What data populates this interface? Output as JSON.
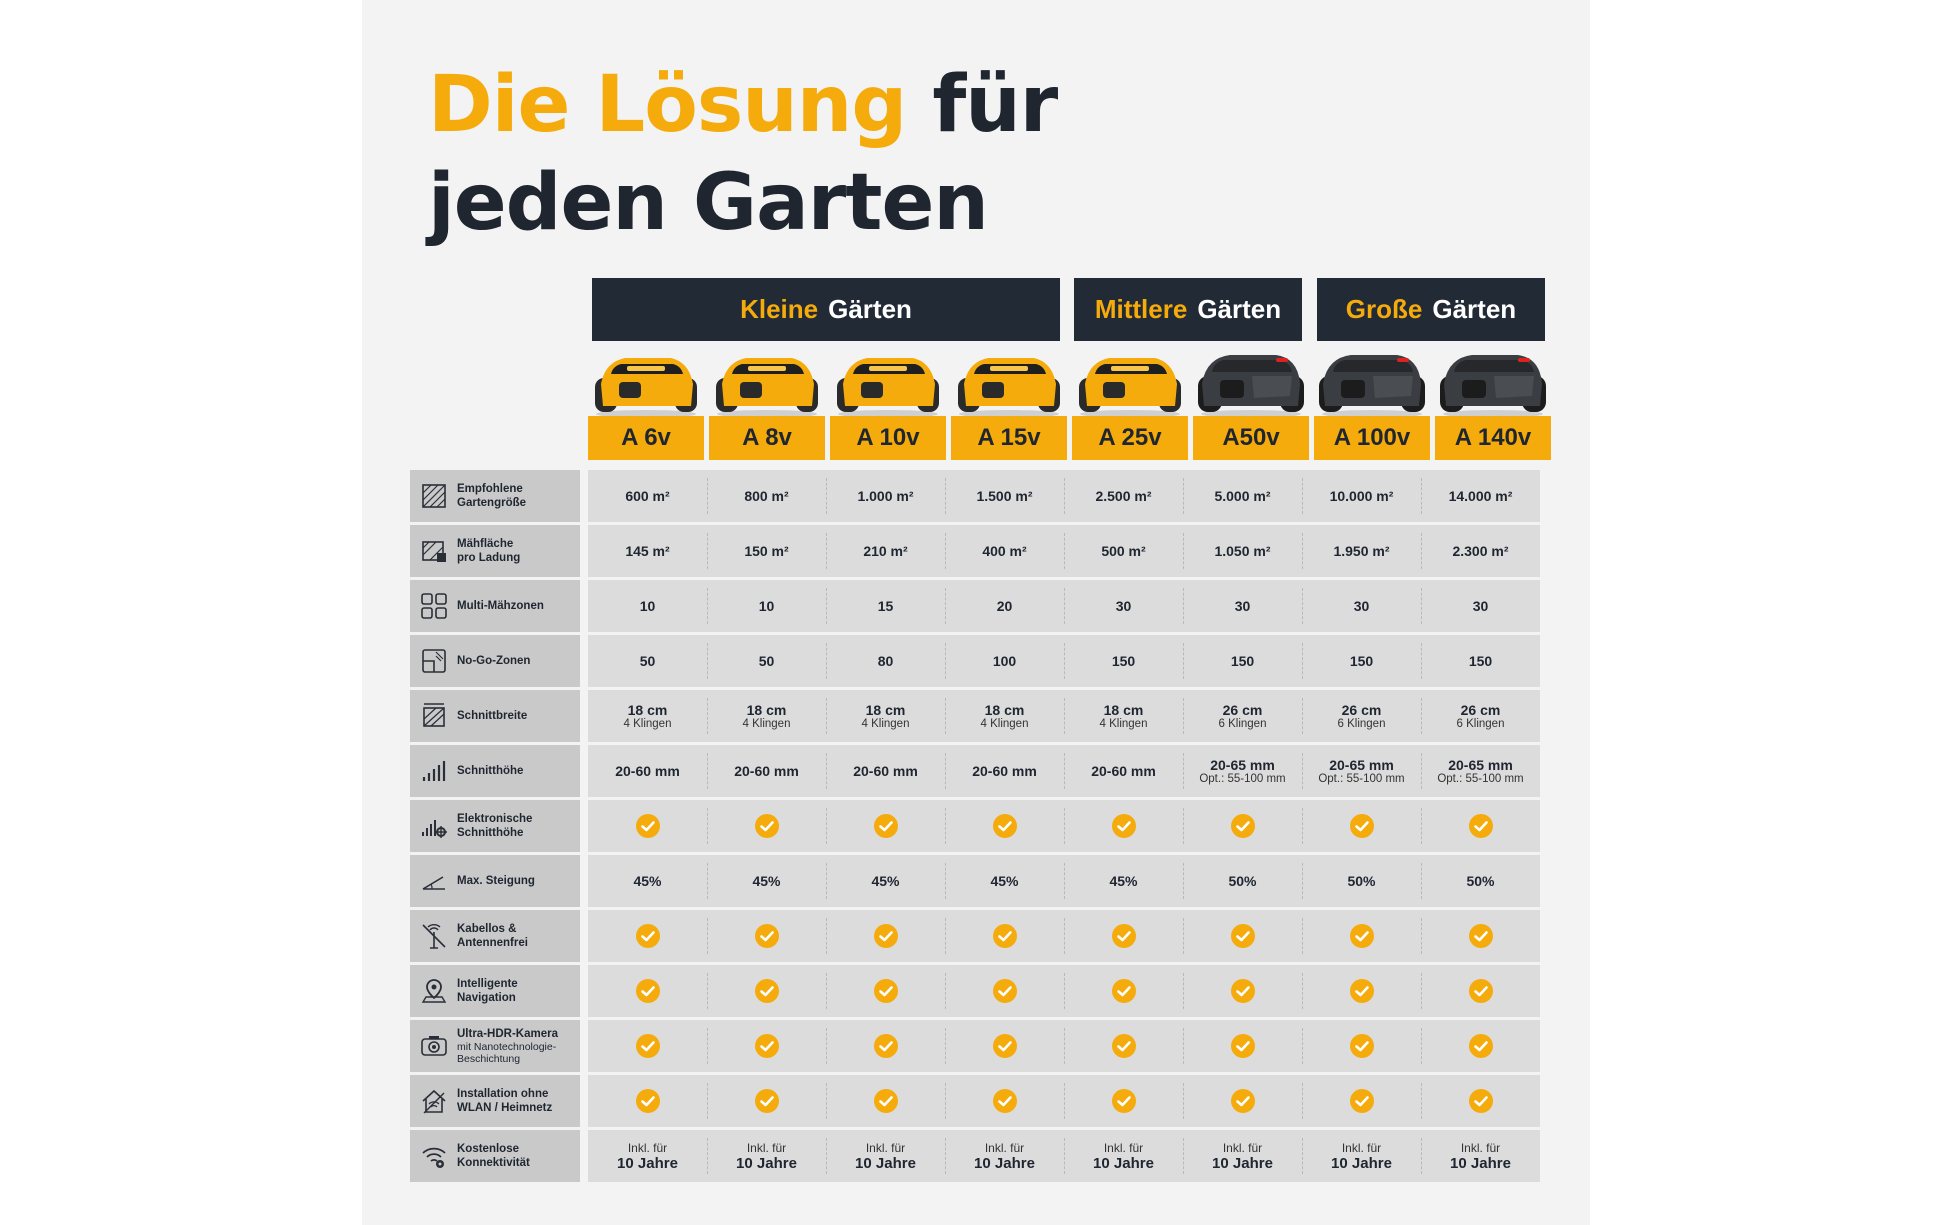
{
  "title": {
    "highlight": "Die Lösung",
    "rest1": "für",
    "line2": "jeden Garten"
  },
  "accent_color": "#f5ab0b",
  "dark_color": "#222a36",
  "groups": [
    {
      "highlight": "Kleine",
      "rest": "Gärten"
    },
    {
      "highlight": "Mittlere",
      "rest": "Gärten"
    },
    {
      "highlight": "Große",
      "rest": "Gärten"
    }
  ],
  "products": [
    {
      "name": "A 6v",
      "body": "yellow"
    },
    {
      "name": "A 8v",
      "body": "yellow"
    },
    {
      "name": "A 10v",
      "body": "yellow"
    },
    {
      "name": "A 15v",
      "body": "yellow"
    },
    {
      "name": "A 25v",
      "body": "yellow"
    },
    {
      "name": "A50v",
      "body": "dark"
    },
    {
      "name": "A 100v",
      "body": "dark"
    },
    {
      "name": "A 140v",
      "body": "dark"
    }
  ],
  "rows": [
    {
      "icon": "garden-size-icon",
      "label": [
        "Empfohlene",
        "Gartengröße"
      ],
      "type": "text",
      "values": [
        "600 m²",
        "800 m²",
        "1.000 m²",
        "1.500 m²",
        "2.500 m²",
        "5.000 m²",
        "10.000 m²",
        "14.000 m²"
      ]
    },
    {
      "icon": "mowing-area-icon",
      "label": [
        "Mähfläche",
        "pro Ladung"
      ],
      "type": "text",
      "values": [
        "145 m²",
        "150 m²",
        "210 m²",
        "400 m²",
        "500 m²",
        "1.050 m²",
        "1.950 m²",
        "2.300 m²"
      ]
    },
    {
      "icon": "multi-zone-icon",
      "label": [
        "Multi-Mähzonen"
      ],
      "type": "text",
      "values": [
        "10",
        "10",
        "15",
        "20",
        "30",
        "30",
        "30",
        "30"
      ]
    },
    {
      "icon": "no-go-zone-icon",
      "label": [
        "No-Go-Zonen"
      ],
      "type": "text",
      "values": [
        "50",
        "50",
        "80",
        "100",
        "150",
        "150",
        "150",
        "150"
      ]
    },
    {
      "icon": "cutting-width-icon",
      "label": [
        "Schnittbreite"
      ],
      "type": "text2",
      "values": [
        {
          "main": "18 cm",
          "sub": "4 Klingen"
        },
        {
          "main": "18 cm",
          "sub": "4 Klingen"
        },
        {
          "main": "18 cm",
          "sub": "4 Klingen"
        },
        {
          "main": "18 cm",
          "sub": "4 Klingen"
        },
        {
          "main": "18 cm",
          "sub": "4 Klingen"
        },
        {
          "main": "26 cm",
          "sub": "6 Klingen"
        },
        {
          "main": "26 cm",
          "sub": "6 Klingen"
        },
        {
          "main": "26 cm",
          "sub": "6 Klingen"
        }
      ]
    },
    {
      "icon": "cutting-height-icon",
      "label": [
        "Schnitthöhe"
      ],
      "type": "text2",
      "values": [
        {
          "main": "20-60 mm",
          "sub": ""
        },
        {
          "main": "20-60 mm",
          "sub": ""
        },
        {
          "main": "20-60 mm",
          "sub": ""
        },
        {
          "main": "20-60 mm",
          "sub": ""
        },
        {
          "main": "20-60 mm",
          "sub": ""
        },
        {
          "main": "20-65 mm",
          "sub": "Opt.: 55-100 mm"
        },
        {
          "main": "20-65 mm",
          "sub": "Opt.: 55-100 mm"
        },
        {
          "main": "20-65 mm",
          "sub": "Opt.: 55-100 mm"
        }
      ]
    },
    {
      "icon": "electronic-height-icon",
      "label": [
        "Elektronische",
        "Schnitthöhe"
      ],
      "type": "check",
      "values": [
        true,
        true,
        true,
        true,
        true,
        true,
        true,
        true
      ]
    },
    {
      "icon": "slope-icon",
      "label": [
        "Max. Steigung"
      ],
      "type": "text",
      "values": [
        "45%",
        "45%",
        "45%",
        "45%",
        "45%",
        "50%",
        "50%",
        "50%"
      ]
    },
    {
      "icon": "no-antenna-icon",
      "label": [
        "Kabellos &",
        "Antennenfrei"
      ],
      "type": "check",
      "values": [
        true,
        true,
        true,
        true,
        true,
        true,
        true,
        true
      ]
    },
    {
      "icon": "navigation-icon",
      "label": [
        "Intelligente",
        "Navigation"
      ],
      "type": "check",
      "values": [
        true,
        true,
        true,
        true,
        true,
        true,
        true,
        true
      ]
    },
    {
      "icon": "camera-icon",
      "label": [
        "Ultra-HDR-Kamera"
      ],
      "sublabel": [
        "mit Nanotechnologie-",
        "Beschichtung"
      ],
      "type": "check",
      "values": [
        true,
        true,
        true,
        true,
        true,
        true,
        true,
        true
      ]
    },
    {
      "icon": "home-network-icon",
      "label": [
        "Installation ohne",
        "WLAN / Heimnetz"
      ],
      "type": "check",
      "values": [
        true,
        true,
        true,
        true,
        true,
        true,
        true,
        true
      ]
    },
    {
      "icon": "connectivity-icon",
      "label": [
        "Kostenlose",
        "Konnektivität"
      ],
      "type": "text3",
      "values": [
        {
          "pre": "Inkl. für",
          "main": "10 Jahre"
        },
        {
          "pre": "Inkl. für",
          "main": "10 Jahre"
        },
        {
          "pre": "Inkl. für",
          "main": "10 Jahre"
        },
        {
          "pre": "Inkl. für",
          "main": "10 Jahre"
        },
        {
          "pre": "Inkl. für",
          "main": "10 Jahre"
        },
        {
          "pre": "Inkl. für",
          "main": "10 Jahre"
        },
        {
          "pre": "Inkl. für",
          "main": "10 Jahre"
        },
        {
          "pre": "Inkl. für",
          "main": "10 Jahre"
        }
      ]
    }
  ]
}
